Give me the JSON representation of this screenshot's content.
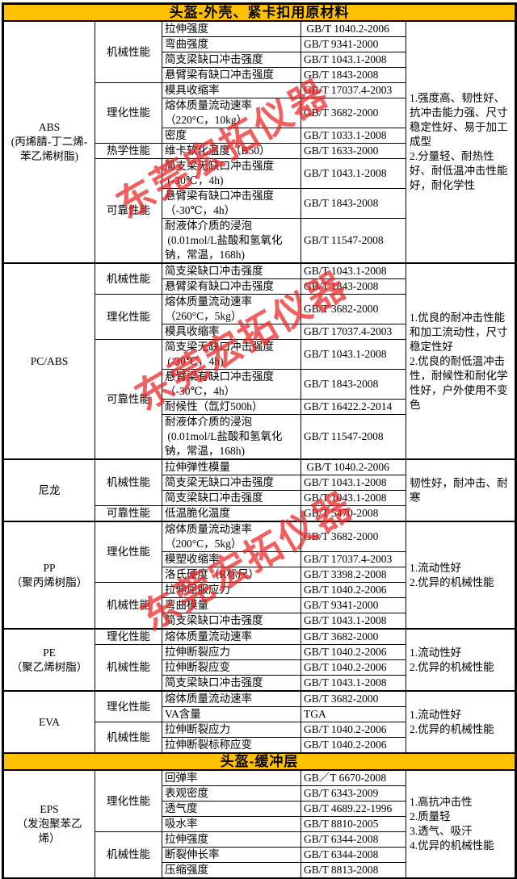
{
  "colors": {
    "header_bg": "#FFC000",
    "border": "#000000",
    "watermark_red": "#EB2323"
  },
  "watermark": {
    "text": "东莞宏拓仪器"
  },
  "sections": [
    {
      "title": "头盔-外壳、紧卡扣用原材料",
      "materials": [
        {
          "name": "ABS\n(丙烯腈-丁二烯-\n苯乙烯树脂)",
          "notes": "1.强度高、韧性好、抗冲击能力强、尺寸稳定性好、易于加工成型\n2.分量轻、耐热性好、耐低温冲击性能好，耐化学性",
          "groups": [
            {
              "category": "机械性能",
              "rows": [
                {
                  "property": "拉伸强度",
                  "standard": " GB/T 1040.2-2006"
                },
                {
                  "property": "弯曲强度",
                  "standard": "GB/T 9341-2000"
                },
                {
                  "property": "简支梁缺口冲击强度",
                  "standard": "GB/T 1043.1-2008"
                },
                {
                  "property": "悬臂梁有缺口冲击强度",
                  "standard": "GB/T 1843-2008"
                }
              ]
            },
            {
              "category": "理化性能",
              "rows": [
                {
                  "property": "模具收缩率",
                  "standard": "GB/T 17037.4-2003"
                },
                {
                  "property": "熔体质量流动速率\n（220°C，10kg）",
                  "standard": "GB/T 3682-2000"
                },
                {
                  "property": "密度",
                  "standard": "GB/T 1033.1-2008"
                }
              ]
            },
            {
              "category": "热学性能",
              "rows": [
                {
                  "property": "维卡软化温度（B50）",
                  "standard": "GB/T 1633-2000"
                }
              ]
            },
            {
              "category": "可靠性能",
              "rows": [
                {
                  "property": "简支梁无缺口冲击强度\n (-30℃，4h)",
                  "standard": "GB/T 1043.1-2008"
                },
                {
                  "property": "悬臂梁有缺口冲击强度\n（-30℃，4h）",
                  "standard": "GB/T 1843-2008"
                },
                {
                  "property": "耐液体介质的浸泡\n (0.01mol/L盐酸和氢氧化\n钠，常温，168h)",
                  "standard": "GB/T 11547-2008"
                }
              ]
            }
          ]
        },
        {
          "name": "PC/ABS",
          "notes": "1.优良的耐冲击性能和加工流动性，尺寸稳定性好\n2.优良的耐低温冲击性，耐候性和耐化学性好，户外使用不变色",
          "groups": [
            {
              "category": "机械性能",
              "rows": [
                {
                  "property": "简支梁缺口冲击强度",
                  "standard": "GB/T 1043.1-2008"
                },
                {
                  "property": "悬臂梁有缺口冲击强度",
                  "standard": "GB/T 1843-2008"
                }
              ]
            },
            {
              "category": "理化性能",
              "rows": [
                {
                  "property": "熔体质量流动速率\n（260°C，5kg）\n",
                  "standard": "GB/T 3682-2000"
                },
                {
                  "property": "模具收缩率",
                  "standard": "GB/T 17037.4-2003"
                }
              ]
            },
            {
              "category": "可靠性能",
              "rows": [
                {
                  "property": "简支梁无缺口冲击强度\n (-30℃，4h)",
                  "standard": "GB/T 1043.1-2008"
                },
                {
                  "property": "悬臂梁有缺口冲击强度\n（-30℃，4h）",
                  "standard": "GB/T 1843-2008"
                },
                {
                  "property": "耐候性（氙灯500h）",
                  "standard": "GB/T 16422.2-2014"
                },
                {
                  "property": "耐液体介质的浸泡\n (0.01mol/L盐酸和氢氧化\n钠，常温，168h)",
                  "standard": "GB/T 11547-2008"
                }
              ]
            }
          ]
        },
        {
          "name": "尼龙",
          "notes": "韧性好，耐冲击、耐寒",
          "groups": [
            {
              "category": "机械性能",
              "rows": [
                {
                  "property": "拉伸弹性模量",
                  "standard": " GB/T 1040.2-2006"
                },
                {
                  "property": "简支梁无缺口冲击强度",
                  "standard": "GB/T 1043.1-2008"
                },
                {
                  "property": "简支梁缺口冲击强度",
                  "standard": "GB/T 1043.1-2008"
                }
              ]
            },
            {
              "category": "可靠性能",
              "rows": [
                {
                  "property": "低温脆化温度",
                  "standard": "GB/T 5470-2008"
                }
              ]
            }
          ]
        },
        {
          "name": "PP\n（聚丙烯树脂）",
          "notes": "1.流动性好\n2.优异的机械性能",
          "groups": [
            {
              "category": "理化性能",
              "rows": [
                {
                  "property": "熔体质量流动速率\n（200°C，5kg）",
                  "standard": "GB/T 3682-2000"
                },
                {
                  "property": "模塑收缩率",
                  "standard": "GB/T 17037.4-2003"
                },
                {
                  "property": "洛氏硬度（R标尺）",
                  "standard": "GB/T 3398.2-2008"
                }
              ]
            },
            {
              "category": "机械性能",
              "rows": [
                {
                  "property": "拉伸屈服应力",
                  "standard": "GB/T 1040.2-2006"
                },
                {
                  "property": "弯曲模量",
                  "standard": "GB/T 9341-2000"
                },
                {
                  "property": "简支梁缺口冲击强度",
                  "standard": "GB/T 1043.1-2008"
                }
              ]
            }
          ]
        },
        {
          "name": "PE\n（聚乙烯树脂）",
          "notes": "1.流动性好\n2.优异的机械性能",
          "groups": [
            {
              "category": "理化性能",
              "rows": [
                {
                  "property": "熔体质量流动速率",
                  "standard": "GB/T 3682-2000"
                }
              ]
            },
            {
              "category": "机械性能",
              "rows": [
                {
                  "property": "拉伸断裂应力",
                  "standard": "GB/T 1040.2-2006"
                },
                {
                  "property": "拉伸断裂应变",
                  "standard": "GB/T 1040.2-2006"
                },
                {
                  "property": "简支梁缺口冲击强度",
                  "standard": "GB/T 1043.1-2008"
                }
              ]
            }
          ]
        },
        {
          "name": "EVA",
          "notes": "1.流动性好\n2.优异的机械性能",
          "groups": [
            {
              "category": "理化性能",
              "rows": [
                {
                  "property": "熔体质量流动速率",
                  "standard": "GB/T 3682-2000"
                },
                {
                  "property": "VA含量",
                  "standard": "TGA"
                }
              ]
            },
            {
              "category": "机械性能",
              "rows": [
                {
                  "property": "拉伸断裂应力",
                  "standard": "GB/T 1040.2-2006"
                },
                {
                  "property": "拉伸断裂标称应变",
                  "standard": "GB/T 1040.2-2006"
                }
              ]
            }
          ]
        }
      ]
    },
    {
      "title": "头盔-缓冲层",
      "materials": [
        {
          "name": "EPS\n（发泡聚苯乙\n烯）",
          "notes": "1.高抗冲击性\n2.质量轻\n3.透气、吸汗\n4.优异的机械性能",
          "groups": [
            {
              "category": "理化性能",
              "rows": [
                {
                  "property": "回弹率",
                  "standard": "GB／T 6670-2008"
                },
                {
                  "property": "表观密度",
                  "standard": "GB/T 6343-2009"
                },
                {
                  "property": "透气度",
                  "standard": "GB/T 4689.22-1996"
                },
                {
                  "property": "吸水率",
                  "standard": "GB/T 8810-2005"
                }
              ]
            },
            {
              "category": "机械性能",
              "rows": [
                {
                  "property": "拉伸强度",
                  "standard": "GB/T 6344-2008"
                },
                {
                  "property": "断裂伸长率",
                  "standard": "GB/T 6344-2008"
                },
                {
                  "property": "压缩强度",
                  "standard": "GB/T 8813-2008"
                }
              ]
            }
          ]
        }
      ]
    }
  ]
}
